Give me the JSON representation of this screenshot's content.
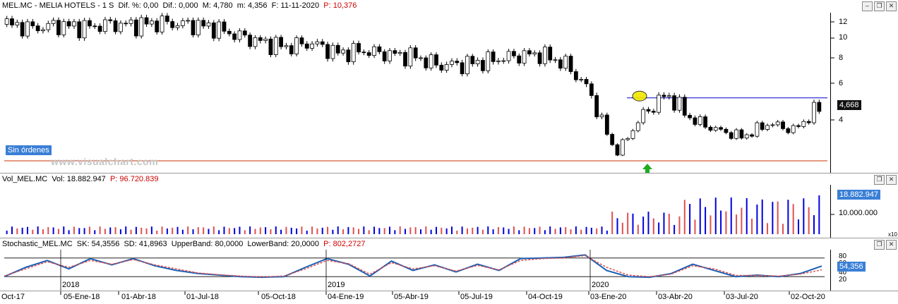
{
  "price_panel": {
    "ticker": "MEL.MC",
    "sep1": " - ",
    "name": "MELIA HOTELS",
    "sep2": " - ",
    "period": "1 S",
    "dif_pct_label": "Dif. %:",
    "dif_pct": "0,00",
    "dif_label": "Dif.:",
    "dif": "0,000",
    "max_label": "M:",
    "max": "4,780",
    "min_label": "m:",
    "min": "4,356",
    "date_label": "F:",
    "date": "11-11-2020",
    "prev_label": "P:",
    "prev": "10,376",
    "y_ticks": [
      "12",
      "10",
      "8",
      "6",
      "4"
    ],
    "last_price": "4,668",
    "orders_badge": "Sin órdenes",
    "watermark": "www.visualchart.com"
  },
  "volume_panel": {
    "name": "Vol_MEL.MC",
    "vol_label": "Vol:",
    "vol": "18.882.947",
    "p_label": "P:",
    "p": "96.720.839",
    "y_tick": "10.000.000",
    "last_value": "18.882.947",
    "scale": "x10"
  },
  "stoch_panel": {
    "name": "Stochastic_MEL.MC",
    "sk_label": "SK:",
    "sk": "54,3556",
    "sd_label": "SD:",
    "sd": "41,8963",
    "ub_label": "UpperBand:",
    "ub": "80,0000",
    "lb_label": "LowerBand:",
    "lb": "20,0000",
    "p_label": "P:",
    "p": "802,2727",
    "y_ticks": [
      "80",
      "60",
      "40",
      "20"
    ],
    "last_value": "54,356"
  },
  "x_axis": {
    "labels": [
      "Oct-17",
      "05-Ene-18",
      "01-Abr-18",
      "01-Jul-18",
      "05-Oct-18",
      "04-Ene-19",
      "05-Abr-19",
      "05-Jul-19",
      "04-Oct-19",
      "03-Ene-20",
      "03-Abr-20",
      "03-Jul-20",
      "02-Oct-20"
    ],
    "year_labels": [
      "2018",
      "2019",
      "2020"
    ]
  },
  "colors": {
    "price_box": "#111111",
    "volume_box": "#3a7fd6",
    "stoch_box": "#3a7fd6",
    "resistance": "#0000cc",
    "support": "#cc3300",
    "bull_volume": "#0000dd",
    "bear_volume": "#e05050",
    "sk_line": "#1a5fb4",
    "sd_line": "#e05050",
    "arrow": "#22aa22",
    "marker": "#f2e600"
  },
  "chart_data": [
    {
      "type": "candlestick",
      "title": "MEL.MC - MELIA HOTELS - 1 S",
      "ylim": [
        1.5,
        13
      ],
      "y_ticks": [
        12,
        10,
        8,
        6,
        4
      ],
      "resistance_level": 5.2,
      "support_level": 1.6,
      "last": 4.668,
      "x": [
        "Oct-17",
        "05-Ene-18",
        "01-Abr-18",
        "01-Jul-18",
        "05-Oct-18",
        "04-Ene-19",
        "05-Abr-19",
        "05-Jul-19",
        "04-Oct-19",
        "03-Ene-20",
        "03-Abr-20",
        "03-Jul-20",
        "02-Oct-20"
      ],
      "close_path": [
        11.7,
        11.2,
        11.6,
        11.3,
        11.7,
        11.6,
        11.9,
        11.7,
        11.4,
        10.4,
        9.6,
        9.1,
        9.5,
        8.5,
        8.7,
        8.4,
        8.2,
        7.4,
        7.5,
        7.8,
        8.2,
        8.4,
        7.5,
        5.4,
        2.0,
        4.2,
        5.4,
        4.0,
        3.4,
        3.0,
        3.8,
        3.4,
        4.7
      ]
    },
    {
      "type": "bar",
      "title": "Vol_MEL.MC",
      "y_ticks": [
        10000000
      ],
      "last": 18882947
    },
    {
      "type": "line",
      "title": "Stochastic_MEL.MC",
      "ylim": [
        0,
        100
      ],
      "y_ticks": [
        80,
        60,
        40,
        20
      ],
      "series": [
        {
          "name": "SK",
          "values": [
            20,
            50,
            72,
            45,
            78,
            58,
            78,
            55,
            40,
            30,
            25,
            20,
            18,
            20,
            50,
            78,
            60,
            22,
            70,
            40,
            58,
            35,
            60,
            40,
            78,
            80,
            82,
            90,
            40,
            20,
            18,
            30,
            60,
            40,
            20,
            25,
            20,
            30,
            54
          ]
        },
        {
          "name": "SD",
          "values": [
            22,
            45,
            68,
            50,
            72,
            60,
            75,
            58,
            45,
            32,
            26,
            22,
            19,
            22,
            45,
            72,
            62,
            28,
            65,
            45,
            55,
            38,
            56,
            42,
            72,
            78,
            80,
            88,
            50,
            25,
            20,
            28,
            55,
            45,
            24,
            24,
            22,
            28,
            42
          ]
        }
      ]
    }
  ]
}
